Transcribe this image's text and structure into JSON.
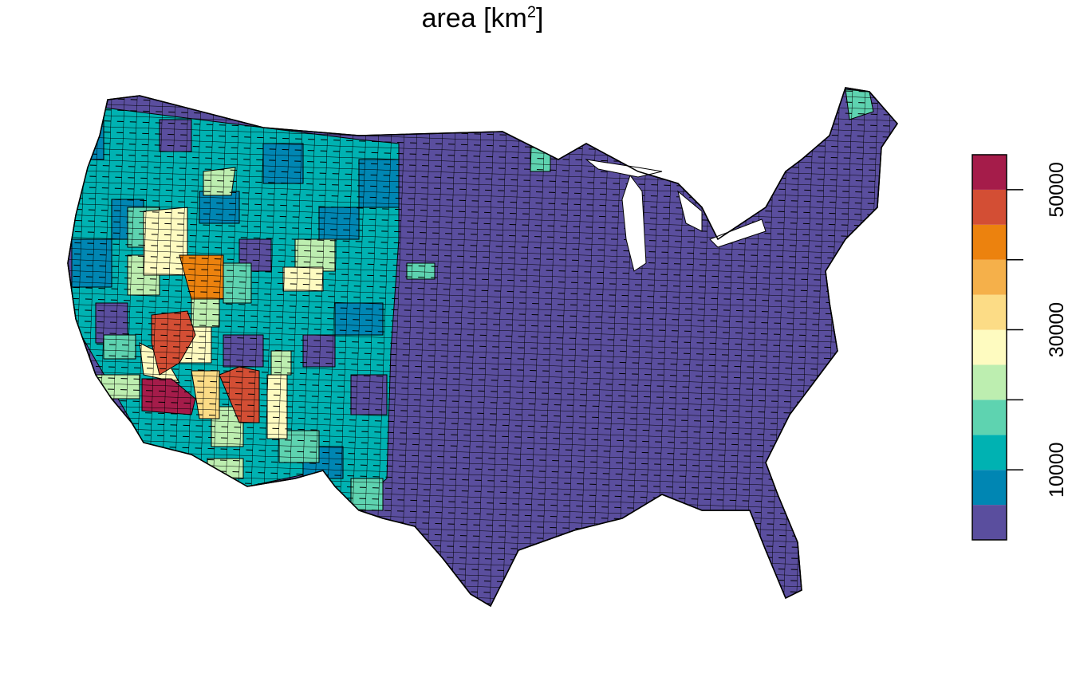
{
  "title": {
    "text": "area [km",
    "superscript": "2",
    "close": "]"
  },
  "chart_data": {
    "type": "choropleth",
    "region": "contiguous United States counties",
    "variable": "area",
    "unit": "km2",
    "title": "area [km²]",
    "legend": {
      "placement": "right",
      "orientation": "vertical",
      "range": [
        0,
        55000
      ],
      "bin_width": 5000,
      "bins": [
        {
          "from": 0,
          "to": 5000,
          "color": "#5A4E9E"
        },
        {
          "from": 5000,
          "to": 10000,
          "color": "#0086B3"
        },
        {
          "from": 10000,
          "to": 15000,
          "color": "#00B2B2"
        },
        {
          "from": 15000,
          "to": 20000,
          "color": "#5ED3B0"
        },
        {
          "from": 20000,
          "to": 25000,
          "color": "#BDEEB0"
        },
        {
          "from": 25000,
          "to": 30000,
          "color": "#FEFBC0"
        },
        {
          "from": 30000,
          "to": 35000,
          "color": "#FCDC86"
        },
        {
          "from": 35000,
          "to": 40000,
          "color": "#F5B04A"
        },
        {
          "from": 40000,
          "to": 45000,
          "color": "#EC820E"
        },
        {
          "from": 45000,
          "to": 50000,
          "color": "#D34E34"
        },
        {
          "from": 50000,
          "to": 55000,
          "color": "#A51C4A"
        }
      ],
      "ticks": [
        10000,
        20000,
        30000,
        40000,
        50000
      ],
      "tick_labels": [
        "10000",
        "",
        "30000",
        "",
        "50000"
      ]
    },
    "border_color": "#000000"
  }
}
